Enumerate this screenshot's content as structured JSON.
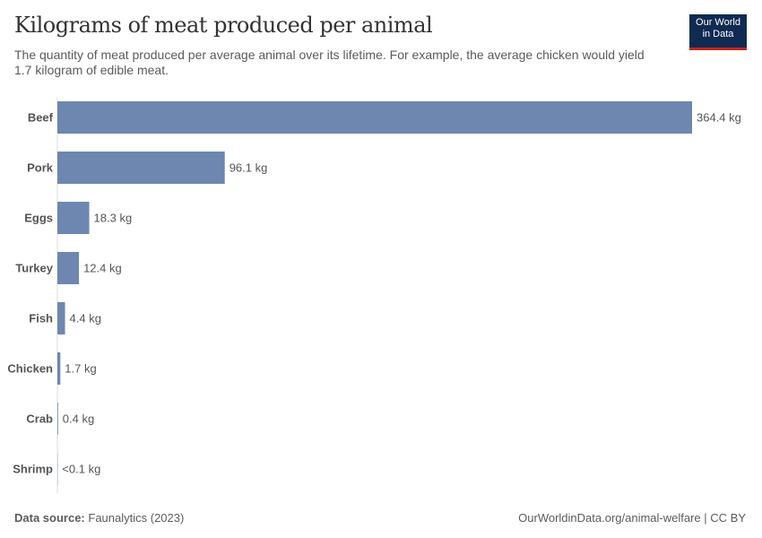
{
  "header": {
    "title": "Kilograms of meat produced per animal",
    "subtitle": "The quantity of meat produced per average animal over its lifetime. For example, the average chicken would yield 1.7 kilogram of edible meat.",
    "logo_line1": "Our World",
    "logo_line2": "in Data"
  },
  "footer": {
    "source_label": "Data source:",
    "source": "Faunalytics (2023)",
    "url": "OurWorldinData.org/animal-welfare | CC BY"
  },
  "chart_data": {
    "type": "bar",
    "orientation": "horizontal",
    "categories": [
      "Beef",
      "Pork",
      "Eggs",
      "Turkey",
      "Fish",
      "Chicken",
      "Crab",
      "Shrimp"
    ],
    "values": [
      364.4,
      96.1,
      18.3,
      12.4,
      4.4,
      1.7,
      0.4,
      0.05
    ],
    "data_labels": [
      "364.4 kg",
      "96.1 kg",
      "18.3 kg",
      "12.4 kg",
      "4.4 kg",
      "1.7 kg",
      "0.4 kg",
      "<0.1 kg"
    ],
    "unit": "kg",
    "bar_color": "#6d87b1",
    "grid": false
  }
}
